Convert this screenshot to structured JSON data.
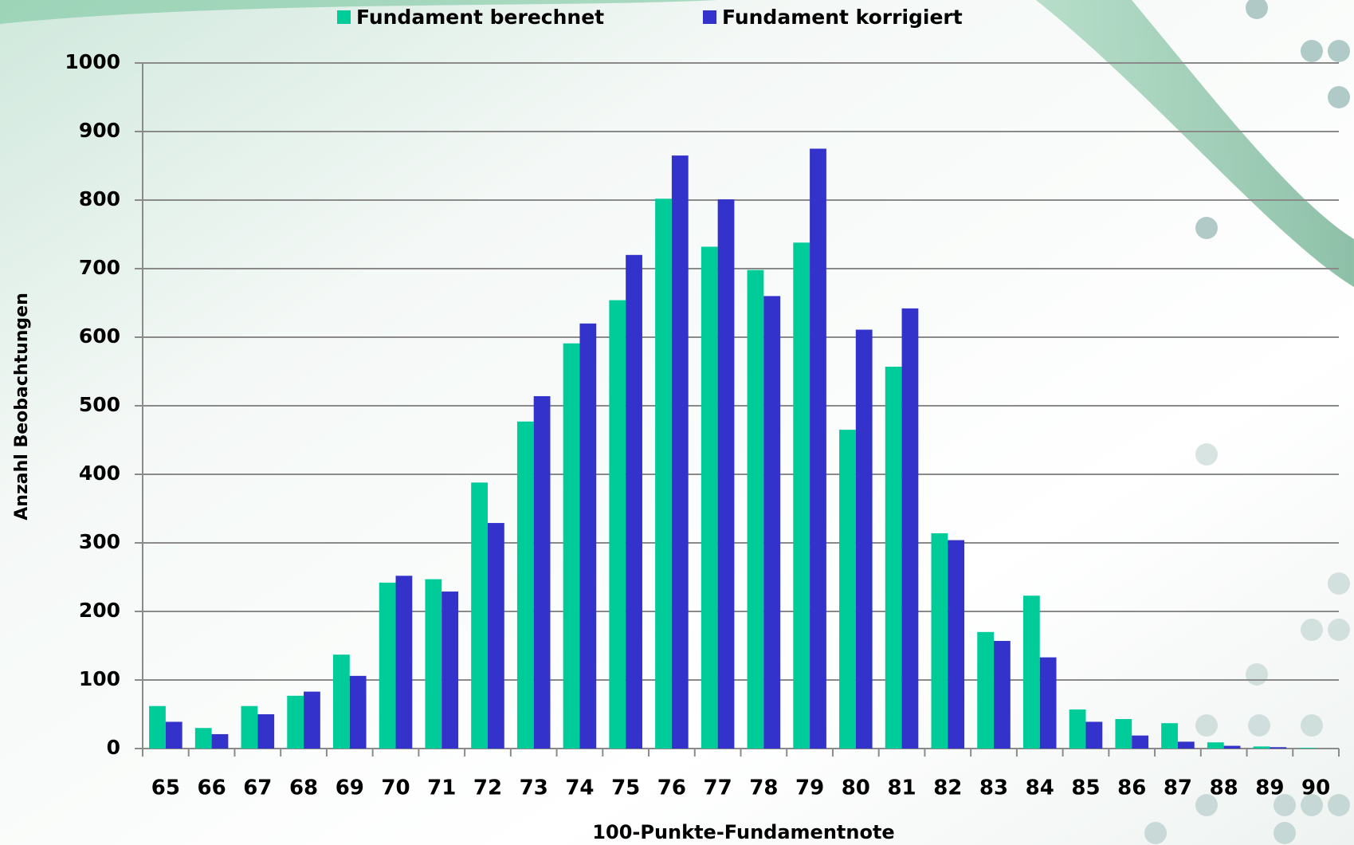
{
  "chart_data": {
    "type": "bar",
    "x_label": "100-Punkte-Fundamentnote",
    "y_label": "Anzahl Beobachtungen",
    "categories": [
      "65",
      "66",
      "67",
      "68",
      "69",
      "70",
      "71",
      "72",
      "73",
      "74",
      "75",
      "76",
      "77",
      "78",
      "79",
      "80",
      "81",
      "82",
      "83",
      "84",
      "85",
      "86",
      "87",
      "88",
      "89",
      "90"
    ],
    "series": [
      {
        "name": "Fundament berechnet",
        "color": "#00cc99",
        "values": [
          62,
          30,
          62,
          77,
          137,
          242,
          247,
          388,
          477,
          591,
          654,
          802,
          732,
          698,
          738,
          465,
          557,
          314,
          170,
          223,
          57,
          43,
          37,
          9,
          3,
          1
        ]
      },
      {
        "name": "Fundament korrigiert",
        "color": "#3333cc",
        "values": [
          39,
          21,
          50,
          83,
          106,
          252,
          229,
          329,
          514,
          620,
          720,
          865,
          801,
          660,
          875,
          611,
          642,
          304,
          157,
          133,
          39,
          19,
          10,
          4,
          2,
          0
        ]
      }
    ],
    "ylim": [
      0,
      1000
    ],
    "yticks": [
      0,
      100,
      200,
      300,
      400,
      500,
      600,
      700,
      800,
      900,
      1000
    ],
    "grid": true,
    "legend": "top"
  }
}
